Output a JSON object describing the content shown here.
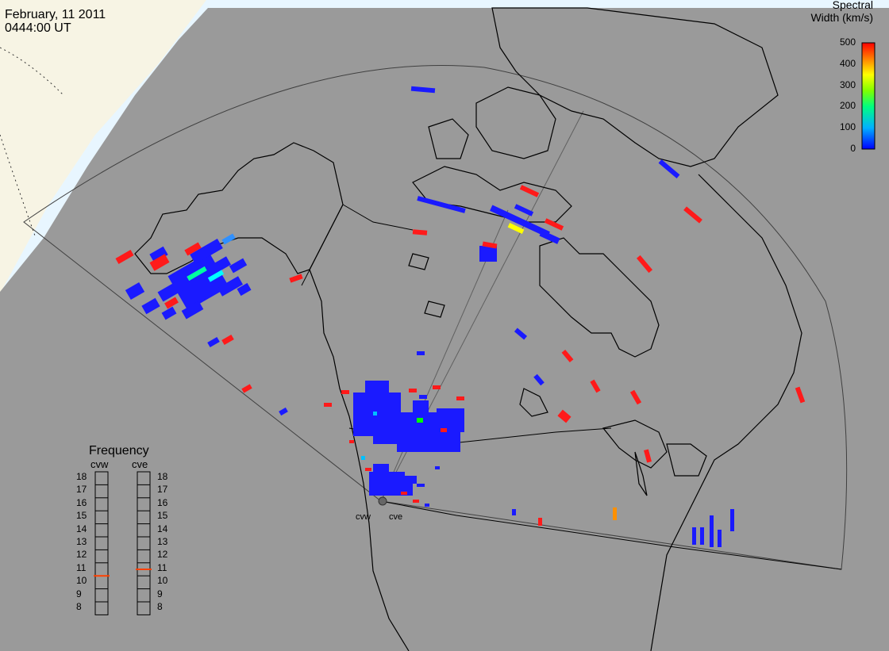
{
  "header": {
    "date": "February, 11 2011",
    "time": "0444:00 UT"
  },
  "colorbar": {
    "title_line1": "Spectral",
    "title_line2": "Width (km/s)",
    "ticks": [
      "500",
      "400",
      "300",
      "200",
      "100",
      "0"
    ],
    "colors": [
      "#ff0000",
      "#ff8000",
      "#ffff00",
      "#00ff00",
      "#00c0ff",
      "#0000ff"
    ]
  },
  "frequency_panel": {
    "title": "Frequency",
    "radars": [
      "cvw",
      "cve"
    ],
    "values": [
      "18",
      "17",
      "16",
      "15",
      "14",
      "13",
      "12",
      "11",
      "10",
      "9",
      "8"
    ],
    "cvw_marker_mhz": 10.5,
    "cve_marker_mhz": 11.0,
    "marker_color": "#ff4000"
  },
  "radars": {
    "west_label": "cvw",
    "east_label": "cve"
  },
  "map_colors": {
    "ocean": "#e8f6ff",
    "night": "#9a9a9a",
    "dayland": "#f7f4e4",
    "coast": "#000000"
  }
}
